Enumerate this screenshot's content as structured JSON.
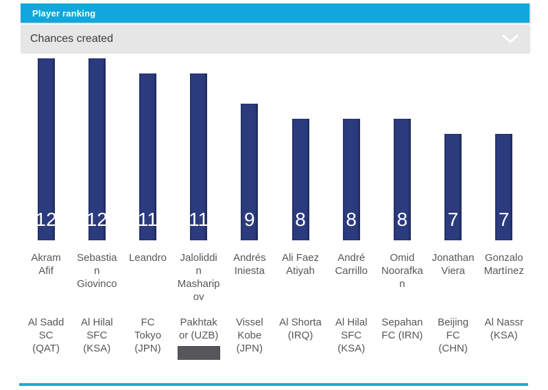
{
  "header": {
    "title": "Player ranking"
  },
  "filter": {
    "label": "Chances created"
  },
  "colors": {
    "accent_cyan": "#10a7dc",
    "bottom_rule_cyan": "#1ba9d4",
    "bar_navy": "#2b3b7e",
    "filter_bg": "#e6e6e6",
    "title_text": "#ffffff",
    "filter_text": "#3a3a3a",
    "label_text": "#565656",
    "logo_placeholder_gray": "#57575a"
  },
  "chart_data": {
    "type": "bar",
    "title": "Player ranking",
    "metric": "Chances created",
    "categories": [
      "Akram Afif",
      "Sebastian Giovinco",
      "Leandro",
      "Jaloliddin Masharipov",
      "Andrés Iniesta",
      "Ali Faez Atiyah",
      "André Carrillo",
      "Omid Noorafkan",
      "Jonathan Viera",
      "Gonzalo Martínez"
    ],
    "clubs": [
      "Al Sadd SC (QAT)",
      "Al Hilal SFC (KSA)",
      "FC Tokyo (JPN)",
      "Pakhtakor (UZB)",
      "Vissel Kobe (JPN)",
      "Al Shorta (IRQ)",
      "Al Hilal SFC (KSA)",
      "Sepahan FC (IRN)",
      "Beijing FC (CHN)",
      "Al Nassr (KSA)"
    ],
    "values": [
      12,
      12,
      11,
      11,
      9,
      8,
      8,
      8,
      7,
      7
    ],
    "value_labels_position": "inside-bottom",
    "bar_color": "#2b3b7e",
    "ylim": [
      0,
      12
    ],
    "grid": false,
    "legend": false,
    "logo_placeholder_index": 3
  }
}
